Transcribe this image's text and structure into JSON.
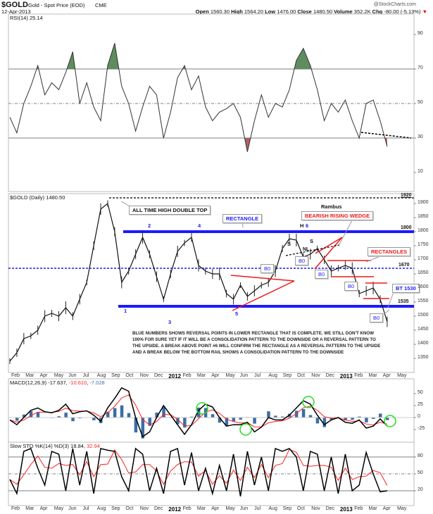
{
  "header": {
    "symbol": "$GOLD",
    "name": "Gold - Spot Price (EOD)",
    "exchange": "CME",
    "date": "12-Apr-2013",
    "watermark": "@StockCharts.com",
    "open_label": "Open",
    "open": "1560.30",
    "high_label": "High",
    "high": "1564.20",
    "low_label": "Low",
    "low": "1476.00",
    "close_label": "Close",
    "close": "1480.50",
    "volume_label": "Volume",
    "volume": "352.2K",
    "chg_label": "Chg",
    "chg": "-80.00 (-5.13%)",
    "chg_arrow": "▼"
  },
  "colors": {
    "price": "#111111",
    "rsi": "#333333",
    "overbought": "#5e8c5e",
    "oversold": "#b06060",
    "rail": "#1a1aff",
    "annotation": "#f01818",
    "macd": "#000000",
    "signal": "#ff2020",
    "hist": "#3a6ea5",
    "circle": "#22dd22"
  },
  "annotations": {
    "ath": "ALL TIME HIGH DOUBLE TOP",
    "rectangle": "RECTANGLE",
    "author": "Rambus",
    "wedge": "BEARISH RISING WEDGE",
    "rectangles": "RECTANGLES",
    "bt": "BT 1530",
    "bo": "B0",
    "l1920": "1920",
    "l1800": "1800",
    "l1670": "1670",
    "l1535": "1535",
    "points": [
      "1",
      "2",
      "3",
      "4",
      "5",
      "6"
    ],
    "h": "H",
    "s": "S",
    "nl": "NL",
    "note": [
      "BLUE NUMBERS SHOWS REVERSAL POINTS IN LOWER RECTANGLE THAT IS COMPLETE. WE STILL DON'T KNOW",
      "100% FOR SURE YET IF IT WILL BE A CONSOLIDATION PATTERN TO THE DOWNSIDE OR A REVERSAL PATTERN TO",
      "THE UPSIDE. A BREAK ABOVE POINT #6 WILL CONFIRM THE RECTANGLE AS A REVERSAL PATTERN TO THE UPSIDE",
      "AND A BREAK BELOW THE BOTTOM RAIL SHOWS A CONSOLIDATION PATTERN TO THE DOWNSIDE"
    ]
  },
  "chart_data": [
    {
      "type": "line",
      "title": "RSI(14) 25.14",
      "legend": "RSI(14)",
      "last": "25.14",
      "ylim": [
        0,
        95
      ],
      "yticks": [
        "90",
        "70",
        "50",
        "30",
        "10"
      ],
      "ytick_values": [
        90,
        70,
        50,
        30,
        10
      ],
      "levels": [
        70,
        50,
        30
      ],
      "values": [
        42,
        33,
        50,
        60,
        72,
        55,
        62,
        58,
        68,
        80,
        50,
        62,
        48,
        40,
        72,
        85,
        60,
        50,
        34,
        48,
        60,
        55,
        30,
        45,
        65,
        72,
        58,
        66,
        48,
        40,
        45,
        47,
        50,
        42,
        22,
        40,
        55,
        42,
        50,
        48,
        58,
        75,
        82,
        72,
        58,
        40,
        50,
        45,
        52,
        40,
        30,
        50,
        52,
        40,
        25
      ]
    },
    {
      "type": "line",
      "title": "$GOLD (Daily) 1480.50",
      "legend": "$GOLD (Daily)",
      "last": "1480.50",
      "ylim": [
        1300,
        1930
      ],
      "yticks": [
        "1900",
        "1850",
        "1800",
        "1750",
        "1700",
        "1650",
        "1600",
        "1550",
        "1500",
        "1450",
        "1400",
        "1350"
      ],
      "ytick_values": [
        1900,
        1850,
        1800,
        1750,
        1700,
        1650,
        1600,
        1550,
        1500,
        1450,
        1400,
        1350
      ],
      "x_start": "2011-02-01",
      "x_end": "2013-04-12",
      "values": [
        1340,
        1370,
        1420,
        1430,
        1450,
        1500,
        1510,
        1500,
        1530,
        1500,
        1560,
        1620,
        1750,
        1880,
        1900,
        1800,
        1620,
        1660,
        1720,
        1780,
        1720,
        1640,
        1560,
        1650,
        1730,
        1760,
        1780,
        1680,
        1660,
        1650,
        1650,
        1580,
        1560,
        1610,
        1570,
        1590,
        1610,
        1620,
        1660,
        1740,
        1775,
        1770,
        1710,
        1720,
        1740,
        1700,
        1660,
        1670,
        1680,
        1670,
        1580,
        1590,
        1600,
        1560,
        1480
      ],
      "horizontal_lines": [
        1920,
        1800,
        1670,
        1535
      ]
    },
    {
      "type": "line",
      "title": "MACD(12,26,9)",
      "legend": "MACD(12,26,9)",
      "macd_last": "-17.637",
      "signal_last": "-10.610",
      "hist_last": "-7.028",
      "ylim": [
        -45,
        70
      ],
      "yticks": [
        "50",
        "25",
        "0",
        "-25"
      ],
      "ytick_values": [
        50,
        25,
        0,
        -25
      ],
      "values": [
        -5,
        -15,
        0,
        15,
        20,
        12,
        10,
        15,
        28,
        8,
        12,
        14,
        5,
        -8,
        20,
        40,
        62,
        55,
        0,
        -40,
        -30,
        0,
        25,
        5,
        -15,
        -35,
        -15,
        15,
        28,
        22,
        0,
        -18,
        -15,
        -15,
        -10,
        -30,
        -20,
        0,
        -5,
        -5,
        5,
        20,
        35,
        28,
        5,
        -15,
        -5,
        0,
        -10,
        -12,
        -5,
        -22,
        -18,
        -3,
        -18
      ]
    },
    {
      "type": "line",
      "title": "Slow STO %K(14) %D(3)",
      "legend": "Slow STO %K(14) %D(3)",
      "k_last": "18.84",
      "d_last": "32.94",
      "ylim": [
        0,
        100
      ],
      "yticks": [
        "80",
        "50",
        "20"
      ],
      "ytick_values": [
        80,
        50,
        20
      ],
      "levels": [
        80,
        50,
        20
      ],
      "values": [
        40,
        15,
        90,
        95,
        60,
        30,
        90,
        85,
        20,
        95,
        30,
        90,
        15,
        95,
        92,
        90,
        45,
        20,
        95,
        85,
        20,
        60,
        15,
        90,
        95,
        30,
        88,
        20,
        60,
        15,
        65,
        20,
        85,
        10,
        90,
        30,
        80,
        20,
        95,
        90,
        95,
        80,
        20,
        90,
        85,
        20,
        80,
        15,
        85,
        20,
        30,
        88,
        50,
        18,
        20
      ]
    }
  ],
  "x_axis": {
    "labels": [
      "Feb",
      "Mar",
      "Apr",
      "May",
      "Jun",
      "Jul",
      "Aug",
      "Sep",
      "Oct",
      "Nov",
      "Dec",
      "2012",
      "Feb",
      "Mar",
      "Apr",
      "May",
      "Jun",
      "Jul",
      "Aug",
      "Sep",
      "Oct",
      "Nov",
      "Dec",
      "2013",
      "Feb",
      "Mar",
      "Apr",
      "May"
    ]
  }
}
